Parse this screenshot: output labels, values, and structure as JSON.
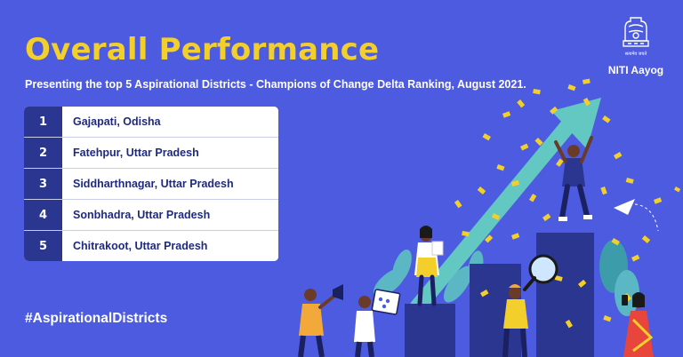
{
  "header": {
    "title": "Overall Performance",
    "subtitle": "Presenting the top 5 Aspirational Districts - Champions of Change Delta Ranking, August 2021."
  },
  "ranking": [
    {
      "rank": "1",
      "district": "Gajapati, Odisha"
    },
    {
      "rank": "2",
      "district": "Fatehpur, Uttar Pradesh"
    },
    {
      "rank": "3",
      "district": "Siddharthnagar, Uttar Pradesh"
    },
    {
      "rank": "4",
      "district": "Sonbhadra, Uttar Pradesh"
    },
    {
      "rank": "5",
      "district": "Chitrakoot, Uttar Pradesh"
    }
  ],
  "hashtag": "#AspirationalDistricts",
  "logo": {
    "org_name": "NITI Aayog",
    "emblem_motto": "सत्यमेव जयते"
  },
  "colors": {
    "background": "#4c5be0",
    "title": "#f2cf2a",
    "rank_cell": "#2b3690",
    "district_text": "#1e2a80",
    "arrow": "#63c7c2",
    "confetti": "#f2cf2a"
  }
}
